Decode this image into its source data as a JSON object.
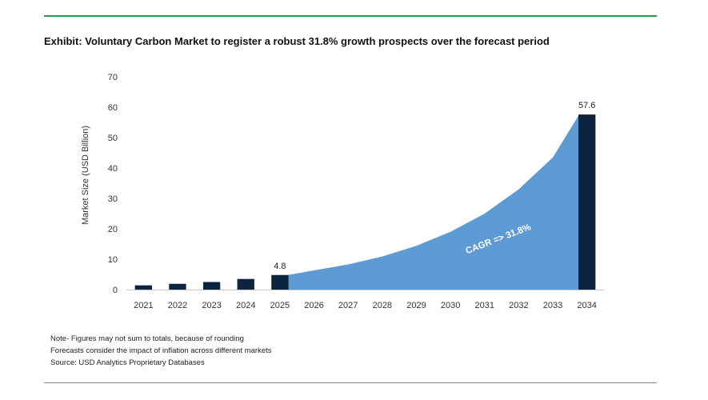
{
  "exhibit": {
    "title": "Exhibit: Voluntary Carbon Market to register a robust 31.8% growth prospects over the forecast period"
  },
  "notes": [
    "Note- Figures may not sum to totals, because of rounding",
    "Forecasts consider the impact of inflation across different markets",
    "Source: USD Analytics Proprietary Databases"
  ],
  "colors": {
    "bar": "#0d2440",
    "area": "#5e9bd5",
    "accent_rule": "#22a04b"
  },
  "chart_data": {
    "type": "bar",
    "title": "",
    "xlabel": "",
    "ylabel": "Market Size (USD Billion)",
    "ylim": [
      0,
      70
    ],
    "yticks": [
      0,
      10,
      20,
      30,
      40,
      50,
      60,
      70
    ],
    "grid": false,
    "categories": [
      "2021",
      "2022",
      "2023",
      "2024",
      "2025",
      "2026",
      "2027",
      "2028",
      "2029",
      "2030",
      "2031",
      "2032",
      "2033",
      "2034"
    ],
    "bars": [
      {
        "category": "2021",
        "value": 1.4
      },
      {
        "category": "2022",
        "value": 1.9
      },
      {
        "category": "2023",
        "value": 2.5
      },
      {
        "category": "2024",
        "value": 3.5
      },
      {
        "category": "2025",
        "value": 4.8,
        "label": "4.8"
      },
      {
        "category": "2034",
        "value": 57.6,
        "label": "57.6"
      }
    ],
    "area": {
      "from": "2025",
      "to": "2034",
      "values": [
        4.8,
        6.3,
        8.3,
        10.9,
        14.4,
        19.0,
        25.0,
        33.0,
        43.5,
        57.6
      ]
    },
    "annotation": "CAGR => 31.8%"
  }
}
